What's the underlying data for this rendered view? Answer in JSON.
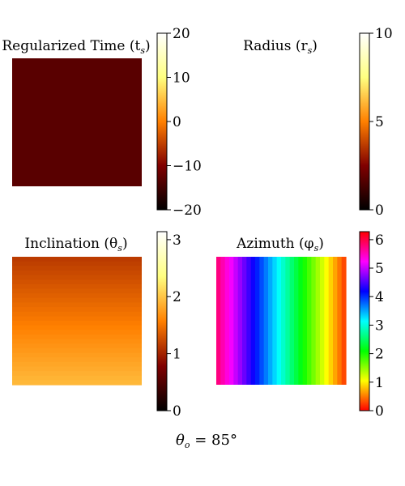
{
  "chart_data": [
    {
      "type": "heatmap",
      "title": "Regularized Time (t",
      "title_sub": "s",
      "title_close": ")",
      "colormap": "afmhot",
      "vlim": [
        -20,
        20
      ],
      "colorbar_ticks": [
        20,
        10,
        0,
        -10,
        -20
      ],
      "colorbar_tick_labels": [
        "20",
        "10",
        "0",
        "−10",
        "−20"
      ],
      "uniform_value": -13,
      "values": [
        [
          -13
        ]
      ]
    },
    {
      "type": "heatmap",
      "title": "Radius (r",
      "title_sub": "s",
      "title_close": ")",
      "colormap": "afmhot",
      "vlim": [
        0,
        10
      ],
      "colorbar_ticks": [
        10,
        5,
        0
      ],
      "colorbar_tick_labels": [
        "10",
        "5",
        "0"
      ],
      "uniform_value": 10,
      "values": [
        [
          10
        ]
      ]
    },
    {
      "type": "heatmap",
      "title": "Inclination (θ",
      "title_sub": "s",
      "title_close": ")",
      "colormap": "afmhot",
      "vlim": [
        0,
        3.14
      ],
      "colorbar_ticks": [
        3,
        2,
        1,
        0
      ],
      "colorbar_tick_labels": [
        "3",
        "2",
        "1",
        "0"
      ],
      "row_range": [
        1.15,
        1.92
      ],
      "values": [
        [
          1.15
        ],
        [
          1.92
        ]
      ]
    },
    {
      "type": "heatmap",
      "title": "Azimuth (φ",
      "title_sub": "s",
      "title_close": ")",
      "colormap": "hsv",
      "vlim": [
        0,
        6.28
      ],
      "colorbar_ticks": [
        6,
        5,
        4,
        3,
        2,
        1,
        0
      ],
      "colorbar_tick_labels": [
        "6",
        "5",
        "4",
        "3",
        "2",
        "1",
        "0"
      ],
      "column_range": [
        5.75,
        0.3
      ],
      "values": [
        [
          5.75,
          0.3
        ]
      ]
    }
  ],
  "footer": {
    "symbol": "θ",
    "sub": "o",
    "rest": " = 85°"
  }
}
